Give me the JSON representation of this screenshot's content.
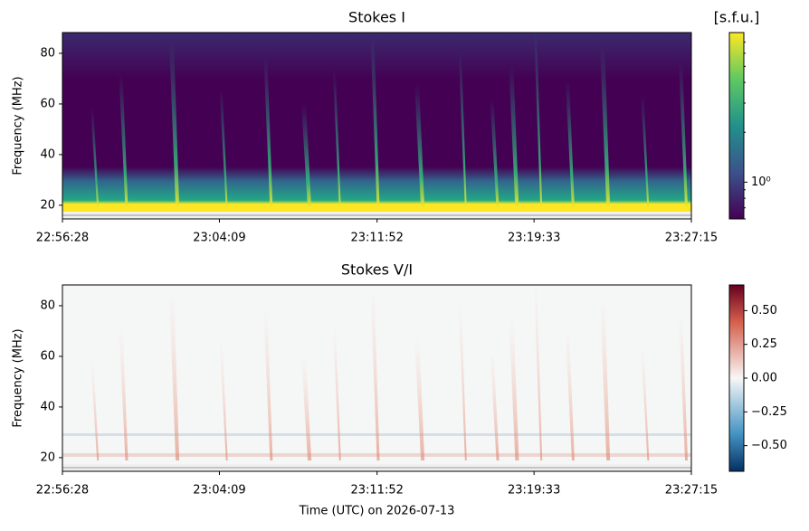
{
  "chart_data": [
    {
      "type": "heatmap",
      "title": "Stokes I",
      "y_label": "Frequency (MHz)",
      "xlim": [
        82588,
        84435
      ],
      "xticks": [
        {
          "value": 82588,
          "label": "22:56:28"
        },
        {
          "value": 83049,
          "label": "23:04:09"
        },
        {
          "value": 83512,
          "label": "23:11:52"
        },
        {
          "value": 83973,
          "label": "23:19:33"
        },
        {
          "value": 84435,
          "label": "23:27:15"
        }
      ],
      "ylim": [
        14.6,
        88.2
      ],
      "yticks": [
        20,
        40,
        60,
        80
      ],
      "colorbar": {
        "label": "[s.f.u.]",
        "colormap": "viridis",
        "scale": "log",
        "lim": [
          0.6,
          8
        ],
        "ticks": [
          {
            "value": 1,
            "label": "10⁰"
          }
        ]
      }
    },
    {
      "type": "heatmap",
      "title": "Stokes V/I",
      "y_label": "Frequency (MHz)",
      "x_label": "Time (UTC) on 2026-07-13",
      "xlim": [
        82588,
        84435
      ],
      "xticks": [
        {
          "value": 82588,
          "label": "22:56:28"
        },
        {
          "value": 83049,
          "label": "23:04:09"
        },
        {
          "value": 83512,
          "label": "23:11:52"
        },
        {
          "value": 83973,
          "label": "23:19:33"
        },
        {
          "value": 84435,
          "label": "23:27:15"
        }
      ],
      "ylim": [
        14.6,
        88.2
      ],
      "yticks": [
        20,
        40,
        60,
        80
      ],
      "colorbar": {
        "colormap": "RdBu_r",
        "scale": "linear",
        "lim": [
          -0.69,
          0.69
        ],
        "ticks": [
          {
            "value": 0.5,
            "label": "0.50"
          },
          {
            "value": 0.25,
            "label": "0.25"
          },
          {
            "value": 0,
            "label": "0.00"
          },
          {
            "value": -0.25,
            "label": "−0.25"
          },
          {
            "value": -0.5,
            "label": "−0.50"
          }
        ]
      }
    }
  ]
}
